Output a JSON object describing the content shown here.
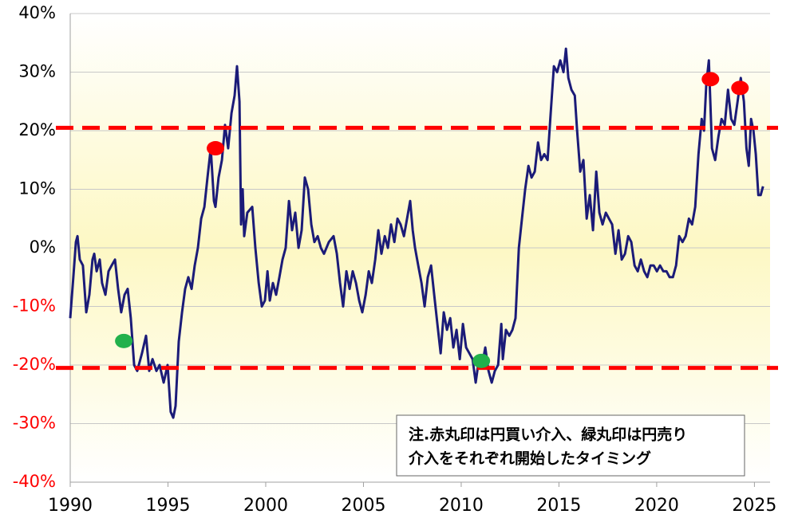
{
  "chart_data": {
    "type": "line",
    "color": "#1b1b78",
    "xlim": [
      1990,
      2025.8
    ],
    "xticks": [
      1990,
      1995,
      2000,
      2005,
      2010,
      2015,
      2020,
      2025
    ],
    "ylim": [
      -40,
      40
    ],
    "yticks": [
      {
        "value": -40,
        "label": "-40%"
      },
      {
        "value": -30,
        "label": "-30%"
      },
      {
        "value": -20,
        "label": "-20%"
      },
      {
        "value": -10,
        "label": "-10%"
      },
      {
        "value": 0,
        "label": "0%"
      },
      {
        "value": 10,
        "label": "10%"
      },
      {
        "value": 20,
        "label": "20%"
      },
      {
        "value": 30,
        "label": "30%"
      },
      {
        "value": 40,
        "label": "40%"
      }
    ],
    "negative_label_color": "#ff0000",
    "grid": true,
    "reference_lines": [
      20.5,
      -20.5
    ],
    "reference_color": "#ff0000",
    "markers": [
      {
        "x": 1997.43,
        "y": 17,
        "color": "#ff0000"
      },
      {
        "x": 2022.75,
        "y": 28.8,
        "color": "#ff0000"
      },
      {
        "x": 2024.26,
        "y": 27.3,
        "color": "#ff0000"
      },
      {
        "x": 1992.74,
        "y": -15.9,
        "color": "#22b14c"
      },
      {
        "x": 2011.03,
        "y": -19.3,
        "color": "#22b14c"
      }
    ],
    "annotation": [
      "注.赤丸印は円買い介入、緑丸印は円売り",
      "介入をそれぞれ開始したタイミング"
    ],
    "x": [
      1990.0,
      1990.16,
      1990.29,
      1990.37,
      1990.49,
      1990.65,
      1990.82,
      1990.98,
      1991.14,
      1991.23,
      1991.35,
      1991.51,
      1991.63,
      1991.8,
      1991.96,
      1992.12,
      1992.29,
      1992.45,
      1992.61,
      1992.78,
      1992.94,
      1993.1,
      1993.27,
      1993.43,
      1993.67,
      1993.88,
      1994.04,
      1994.21,
      1994.41,
      1994.57,
      1994.78,
      1994.98,
      1995.14,
      1995.27,
      1995.39,
      1995.55,
      1995.72,
      1995.88,
      1996.04,
      1996.21,
      1996.37,
      1996.53,
      1996.7,
      1996.86,
      1997.02,
      1997.19,
      1997.35,
      1997.43,
      1997.59,
      1997.76,
      1997.92,
      1998.08,
      1998.25,
      1998.41,
      1998.53,
      1998.66,
      1998.74,
      1998.82,
      1998.9,
      1999.06,
      1999.31,
      1999.47,
      1999.64,
      1999.8,
      1999.96,
      2000.09,
      2000.21,
      2000.37,
      2000.53,
      2000.7,
      2000.86,
      2001.02,
      2001.19,
      2001.35,
      2001.51,
      2001.68,
      2001.84,
      2002.0,
      2002.17,
      2002.33,
      2002.49,
      2002.66,
      2002.82,
      2002.98,
      2003.23,
      2003.47,
      2003.64,
      2003.8,
      2003.96,
      2004.13,
      2004.29,
      2004.45,
      2004.62,
      2004.78,
      2004.94,
      2005.11,
      2005.27,
      2005.43,
      2005.6,
      2005.76,
      2005.92,
      2006.09,
      2006.25,
      2006.41,
      2006.58,
      2006.74,
      2006.9,
      2007.07,
      2007.23,
      2007.39,
      2007.52,
      2007.64,
      2007.8,
      2007.97,
      2008.13,
      2008.29,
      2008.46,
      2008.62,
      2008.78,
      2008.95,
      2009.11,
      2009.27,
      2009.44,
      2009.6,
      2009.76,
      2009.93,
      2010.09,
      2010.25,
      2010.42,
      2010.58,
      2010.74,
      2010.91,
      2011.07,
      2011.23,
      2011.4,
      2011.56,
      2011.72,
      2011.89,
      2012.05,
      2012.13,
      2012.29,
      2012.46,
      2012.62,
      2012.78,
      2012.95,
      2013.11,
      2013.27,
      2013.44,
      2013.6,
      2013.76,
      2013.93,
      2014.09,
      2014.25,
      2014.42,
      2014.58,
      2014.74,
      2014.91,
      2015.07,
      2015.23,
      2015.36,
      2015.48,
      2015.64,
      2015.81,
      2015.93,
      2016.09,
      2016.25,
      2016.42,
      2016.58,
      2016.74,
      2016.91,
      2017.07,
      2017.23,
      2017.4,
      2017.56,
      2017.72,
      2017.89,
      2018.05,
      2018.21,
      2018.38,
      2018.54,
      2018.7,
      2018.87,
      2019.03,
      2019.19,
      2019.36,
      2019.52,
      2019.68,
      2019.85,
      2020.01,
      2020.17,
      2020.34,
      2020.5,
      2020.66,
      2020.83,
      2020.99,
      2021.15,
      2021.32,
      2021.48,
      2021.65,
      2021.81,
      2021.97,
      2022.14,
      2022.3,
      2022.42,
      2022.54,
      2022.67,
      2022.83,
      2022.99,
      2023.16,
      2023.32,
      2023.48,
      2023.65,
      2023.81,
      2023.97,
      2024.14,
      2024.3,
      2024.46,
      2024.59,
      2024.71,
      2024.83,
      2024.95,
      2025.07,
      2025.2,
      2025.32,
      2025.44
    ],
    "values": [
      -12,
      -5,
      1,
      2,
      -2,
      -3,
      -11,
      -8,
      -2,
      -1,
      -4,
      -2,
      -6,
      -8,
      -4,
      -3,
      -2,
      -7,
      -11,
      -8,
      -7,
      -12,
      -20,
      -21,
      -18,
      -15,
      -21,
      -19,
      -21,
      -20,
      -23,
      -20,
      -28,
      -29,
      -27,
      -16,
      -11,
      -7,
      -5,
      -7,
      -3,
      0,
      5,
      7,
      12,
      17,
      8,
      7,
      12,
      15,
      21,
      17,
      23,
      26,
      31,
      25,
      4,
      10,
      2,
      6,
      7,
      0,
      -6,
      -10,
      -9,
      -4,
      -9,
      -6,
      -8,
      -5,
      -2,
      0,
      8,
      3,
      6,
      0,
      3,
      12,
      10,
      4,
      1,
      2,
      0,
      -1,
      1,
      2,
      -1,
      -6,
      -10,
      -4,
      -7,
      -4,
      -6,
      -9,
      -11,
      -8,
      -4,
      -6,
      -2,
      3,
      -1,
      2,
      0,
      4,
      1,
      5,
      4,
      2,
      5,
      8,
      3,
      0,
      -3,
      -6,
      -10,
      -5,
      -3,
      -8,
      -13,
      -18,
      -11,
      -14,
      -12,
      -17,
      -14,
      -19,
      -13,
      -17,
      -18,
      -19,
      -23,
      -19,
      -20,
      -17,
      -21,
      -23,
      -21,
      -20,
      -13,
      -19,
      -14,
      -15,
      -14,
      -12,
      0,
      5,
      10,
      14,
      12,
      13,
      18,
      15,
      16,
      15,
      23,
      31,
      30,
      32,
      30,
      34,
      29,
      27,
      26,
      20,
      13,
      15,
      5,
      9,
      3,
      13,
      6,
      4,
      6,
      5,
      4,
      -1,
      3,
      -2,
      -1,
      2,
      1,
      -3,
      -4,
      -2,
      -4,
      -5,
      -3,
      -3,
      -4,
      -3,
      -4,
      -4,
      -5,
      -5,
      -3,
      2,
      1,
      2,
      5,
      4,
      7,
      16,
      22,
      20,
      28,
      32,
      17,
      15,
      19,
      22,
      21,
      27,
      22,
      21,
      25,
      29,
      25,
      17,
      14,
      22,
      20,
      16,
      9,
      9,
      10.5
    ]
  }
}
